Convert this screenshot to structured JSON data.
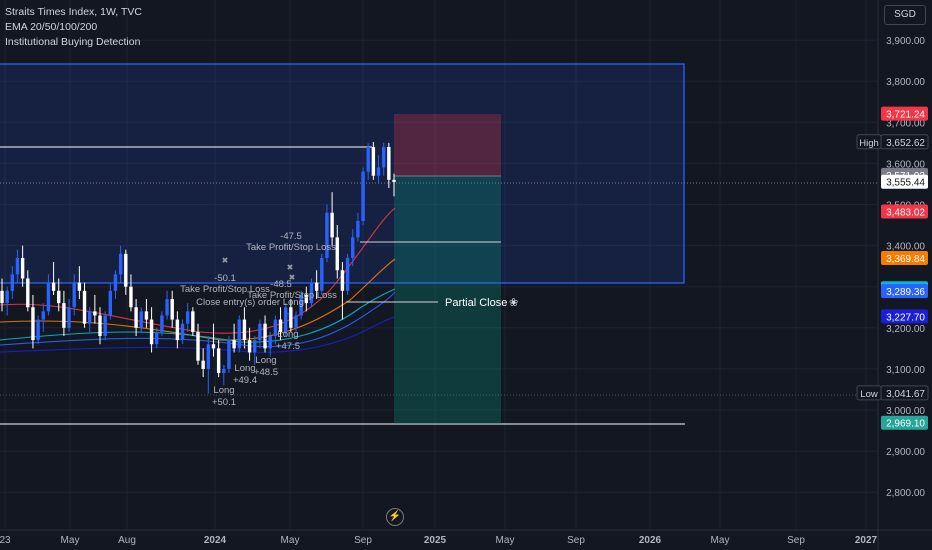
{
  "header": {
    "symbol_line": "Straits Times Index, 1W, TVC",
    "indicator_1": "EMA 20/50/100/200",
    "indicator_2": "Institutional Buying Detection"
  },
  "currency_button": "SGD",
  "colors": {
    "background": "#131722",
    "bull": "#2962ff",
    "bear": "#ffffff",
    "zone": "#2962ff",
    "stop": "#f23645",
    "target": "#089981"
  },
  "chart_data": {
    "type": "candlestick",
    "title": "Straits Times Index, 1W, TVC",
    "currency": "SGD",
    "y_ticks": [
      "3,900.00",
      "3,800.00",
      "3,700.00",
      "3,600.00",
      "3,500.00",
      "3,400.00",
      "3,300.00",
      "3,200.00",
      "3,100.00",
      "3,000.00",
      "2,900.00",
      "2,800.00"
    ],
    "ylim": [
      2760,
      3980
    ],
    "x_ticks": [
      "23",
      "May",
      "Aug",
      "2024",
      "May",
      "Sep",
      "2025",
      "May",
      "Sep",
      "2026",
      "May",
      "Sep",
      "2027"
    ],
    "x_ticks_bold": [
      "2024",
      "2025",
      "2026",
      "2027"
    ],
    "price_labels": [
      {
        "value": 3721.24,
        "text": "3,721.24",
        "color": "#f23645",
        "text_color": "#ffffff"
      },
      {
        "value": 3652.62,
        "text": "3,652.62",
        "prefix": "High",
        "color": "#131722",
        "text_color": "#d1d4dc",
        "border": "#434651"
      },
      {
        "value": 3571.93,
        "text": "3,571.93",
        "color": "#787b86",
        "text_color": "#ffffff"
      },
      {
        "value": 3555.44,
        "text": "3,555.44",
        "color": "#ffffff",
        "text_color": "#131722"
      },
      {
        "value": 3483.02,
        "text": "3,483.02",
        "color": "#f23645",
        "text_color": "#ffffff"
      },
      {
        "value": 3369.84,
        "text": "3,369.84",
        "color": "#f57c00",
        "text_color": "#ffffff"
      },
      {
        "value": 3296.22,
        "text": "3,296.22",
        "color": "#00bcd4",
        "text_color": "#131722"
      },
      {
        "value": 3289.36,
        "text": "3,289.36",
        "color": "#2962ff",
        "text_color": "#ffffff"
      },
      {
        "value": 3227.7,
        "text": "3,227.70",
        "color": "#1a1fd4",
        "text_color": "#ffffff"
      },
      {
        "value": 3041.67,
        "text": "3,041.67",
        "prefix": "Low",
        "color": "#131722",
        "text_color": "#d1d4dc",
        "border": "#434651"
      },
      {
        "value": 2969.1,
        "text": "2,969.10",
        "color": "#26a69a",
        "text_color": "#ffffff"
      }
    ],
    "ohlc": [
      [
        3290,
        3320,
        3240,
        3260
      ],
      [
        3260,
        3300,
        3230,
        3290
      ],
      [
        3290,
        3350,
        3270,
        3330
      ],
      [
        3330,
        3390,
        3310,
        3370
      ],
      [
        3370,
        3400,
        3300,
        3320
      ],
      [
        3320,
        3340,
        3240,
        3250
      ],
      [
        3250,
        3280,
        3150,
        3170
      ],
      [
        3170,
        3230,
        3160,
        3220
      ],
      [
        3220,
        3260,
        3190,
        3240
      ],
      [
        3240,
        3330,
        3230,
        3310
      ],
      [
        3310,
        3360,
        3280,
        3290
      ],
      [
        3290,
        3320,
        3240,
        3260
      ],
      [
        3260,
        3290,
        3180,
        3200
      ],
      [
        3200,
        3270,
        3190,
        3250
      ],
      [
        3250,
        3330,
        3230,
        3310
      ],
      [
        3310,
        3350,
        3270,
        3290
      ],
      [
        3290,
        3310,
        3200,
        3210
      ],
      [
        3210,
        3250,
        3190,
        3240
      ],
      [
        3240,
        3280,
        3210,
        3230
      ],
      [
        3230,
        3250,
        3160,
        3180
      ],
      [
        3180,
        3240,
        3170,
        3230
      ],
      [
        3230,
        3310,
        3220,
        3290
      ],
      [
        3290,
        3340,
        3270,
        3330
      ],
      [
        3330,
        3400,
        3310,
        3380
      ],
      [
        3380,
        3390,
        3280,
        3300
      ],
      [
        3300,
        3330,
        3240,
        3250
      ],
      [
        3250,
        3270,
        3180,
        3200
      ],
      [
        3200,
        3250,
        3190,
        3240
      ],
      [
        3240,
        3270,
        3200,
        3220
      ],
      [
        3220,
        3250,
        3140,
        3160
      ],
      [
        3160,
        3200,
        3150,
        3190
      ],
      [
        3190,
        3240,
        3180,
        3230
      ],
      [
        3230,
        3290,
        3220,
        3270
      ],
      [
        3270,
        3290,
        3200,
        3220
      ],
      [
        3220,
        3240,
        3150,
        3170
      ],
      [
        3170,
        3220,
        3160,
        3210
      ],
      [
        3210,
        3260,
        3190,
        3240
      ],
      [
        3240,
        3250,
        3180,
        3190
      ],
      [
        3190,
        3210,
        3110,
        3120
      ],
      [
        3120,
        3150,
        3080,
        3100
      ],
      [
        3100,
        3180,
        3040,
        3160
      ],
      [
        3160,
        3210,
        3130,
        3150
      ],
      [
        3150,
        3170,
        3080,
        3090
      ],
      [
        3090,
        3110,
        3060,
        3100
      ],
      [
        3100,
        3180,
        3090,
        3170
      ],
      [
        3170,
        3210,
        3140,
        3150
      ],
      [
        3150,
        3230,
        3140,
        3220
      ],
      [
        3220,
        3250,
        3150,
        3170
      ],
      [
        3170,
        3200,
        3120,
        3140
      ],
      [
        3140,
        3180,
        3110,
        3170
      ],
      [
        3170,
        3220,
        3150,
        3210
      ],
      [
        3210,
        3230,
        3140,
        3150
      ],
      [
        3150,
        3190,
        3130,
        3180
      ],
      [
        3180,
        3230,
        3160,
        3220
      ],
      [
        3220,
        3250,
        3170,
        3190
      ],
      [
        3190,
        3260,
        3180,
        3250
      ],
      [
        3250,
        3270,
        3190,
        3200
      ],
      [
        3200,
        3240,
        3190,
        3230
      ],
      [
        3230,
        3290,
        3220,
        3280
      ],
      [
        3280,
        3300,
        3240,
        3260
      ],
      [
        3260,
        3320,
        3250,
        3310
      ],
      [
        3310,
        3340,
        3270,
        3290
      ],
      [
        3290,
        3380,
        3280,
        3370
      ],
      [
        3370,
        3500,
        3360,
        3480
      ],
      [
        3480,
        3530,
        3400,
        3420
      ],
      [
        3420,
        3450,
        3320,
        3340
      ],
      [
        3340,
        3360,
        3220,
        3290
      ],
      [
        3290,
        3380,
        3280,
        3370
      ],
      [
        3370,
        3440,
        3350,
        3420
      ],
      [
        3420,
        3480,
        3410,
        3460
      ],
      [
        3460,
        3590,
        3450,
        3580
      ],
      [
        3580,
        3650,
        3560,
        3640
      ],
      [
        3640,
        3652,
        3560,
        3570
      ],
      [
        3570,
        3620,
        3550,
        3590
      ],
      [
        3590,
        3650,
        3570,
        3640
      ],
      [
        3640,
        3650,
        3540,
        3560
      ],
      [
        3560,
        3575,
        3520,
        3555
      ]
    ],
    "ema_lines": [
      {
        "name": "EMA 20",
        "last": 3483.02,
        "color": "#f23645"
      },
      {
        "name": "EMA 50",
        "last": 3369.84,
        "color": "#f57c00"
      },
      {
        "name": "EMA 100",
        "last": 3296.22,
        "color": "#00bcd4"
      },
      {
        "name": "EMA 200",
        "last": 3227.7,
        "color": "#2962ff"
      }
    ],
    "annotations": [
      {
        "text": "-50.1",
        "color": "#b2b5be"
      },
      {
        "text": "Take Profit/Stop Loss",
        "color": "#b2b5be"
      },
      {
        "text": "Close entry(s) order Long",
        "color": "#b2b5be"
      },
      {
        "text": "-48.5",
        "color": "#b2b5be"
      },
      {
        "text": "Take Profit/Stop Loss",
        "color": "#b2b5be"
      },
      {
        "text": "-47.5",
        "color": "#b2b5be"
      },
      {
        "text": "Take Profit/Stop Loss",
        "color": "#b2b5be"
      },
      {
        "text": "Long",
        "color": "#b2b5be"
      },
      {
        "text": "+50.1",
        "color": "#b2b5be"
      },
      {
        "text": "Long",
        "color": "#b2b5be"
      },
      {
        "text": "+49.4",
        "color": "#b2b5be"
      },
      {
        "text": "Long",
        "color": "#b2b5be"
      },
      {
        "text": "+48.5",
        "color": "#b2b5be"
      },
      {
        "text": "Long",
        "color": "#b2b5be"
      },
      {
        "text": "+47.5",
        "color": "#b2b5be"
      },
      {
        "text": "Partial Close",
        "color": "#ffffff"
      }
    ]
  }
}
